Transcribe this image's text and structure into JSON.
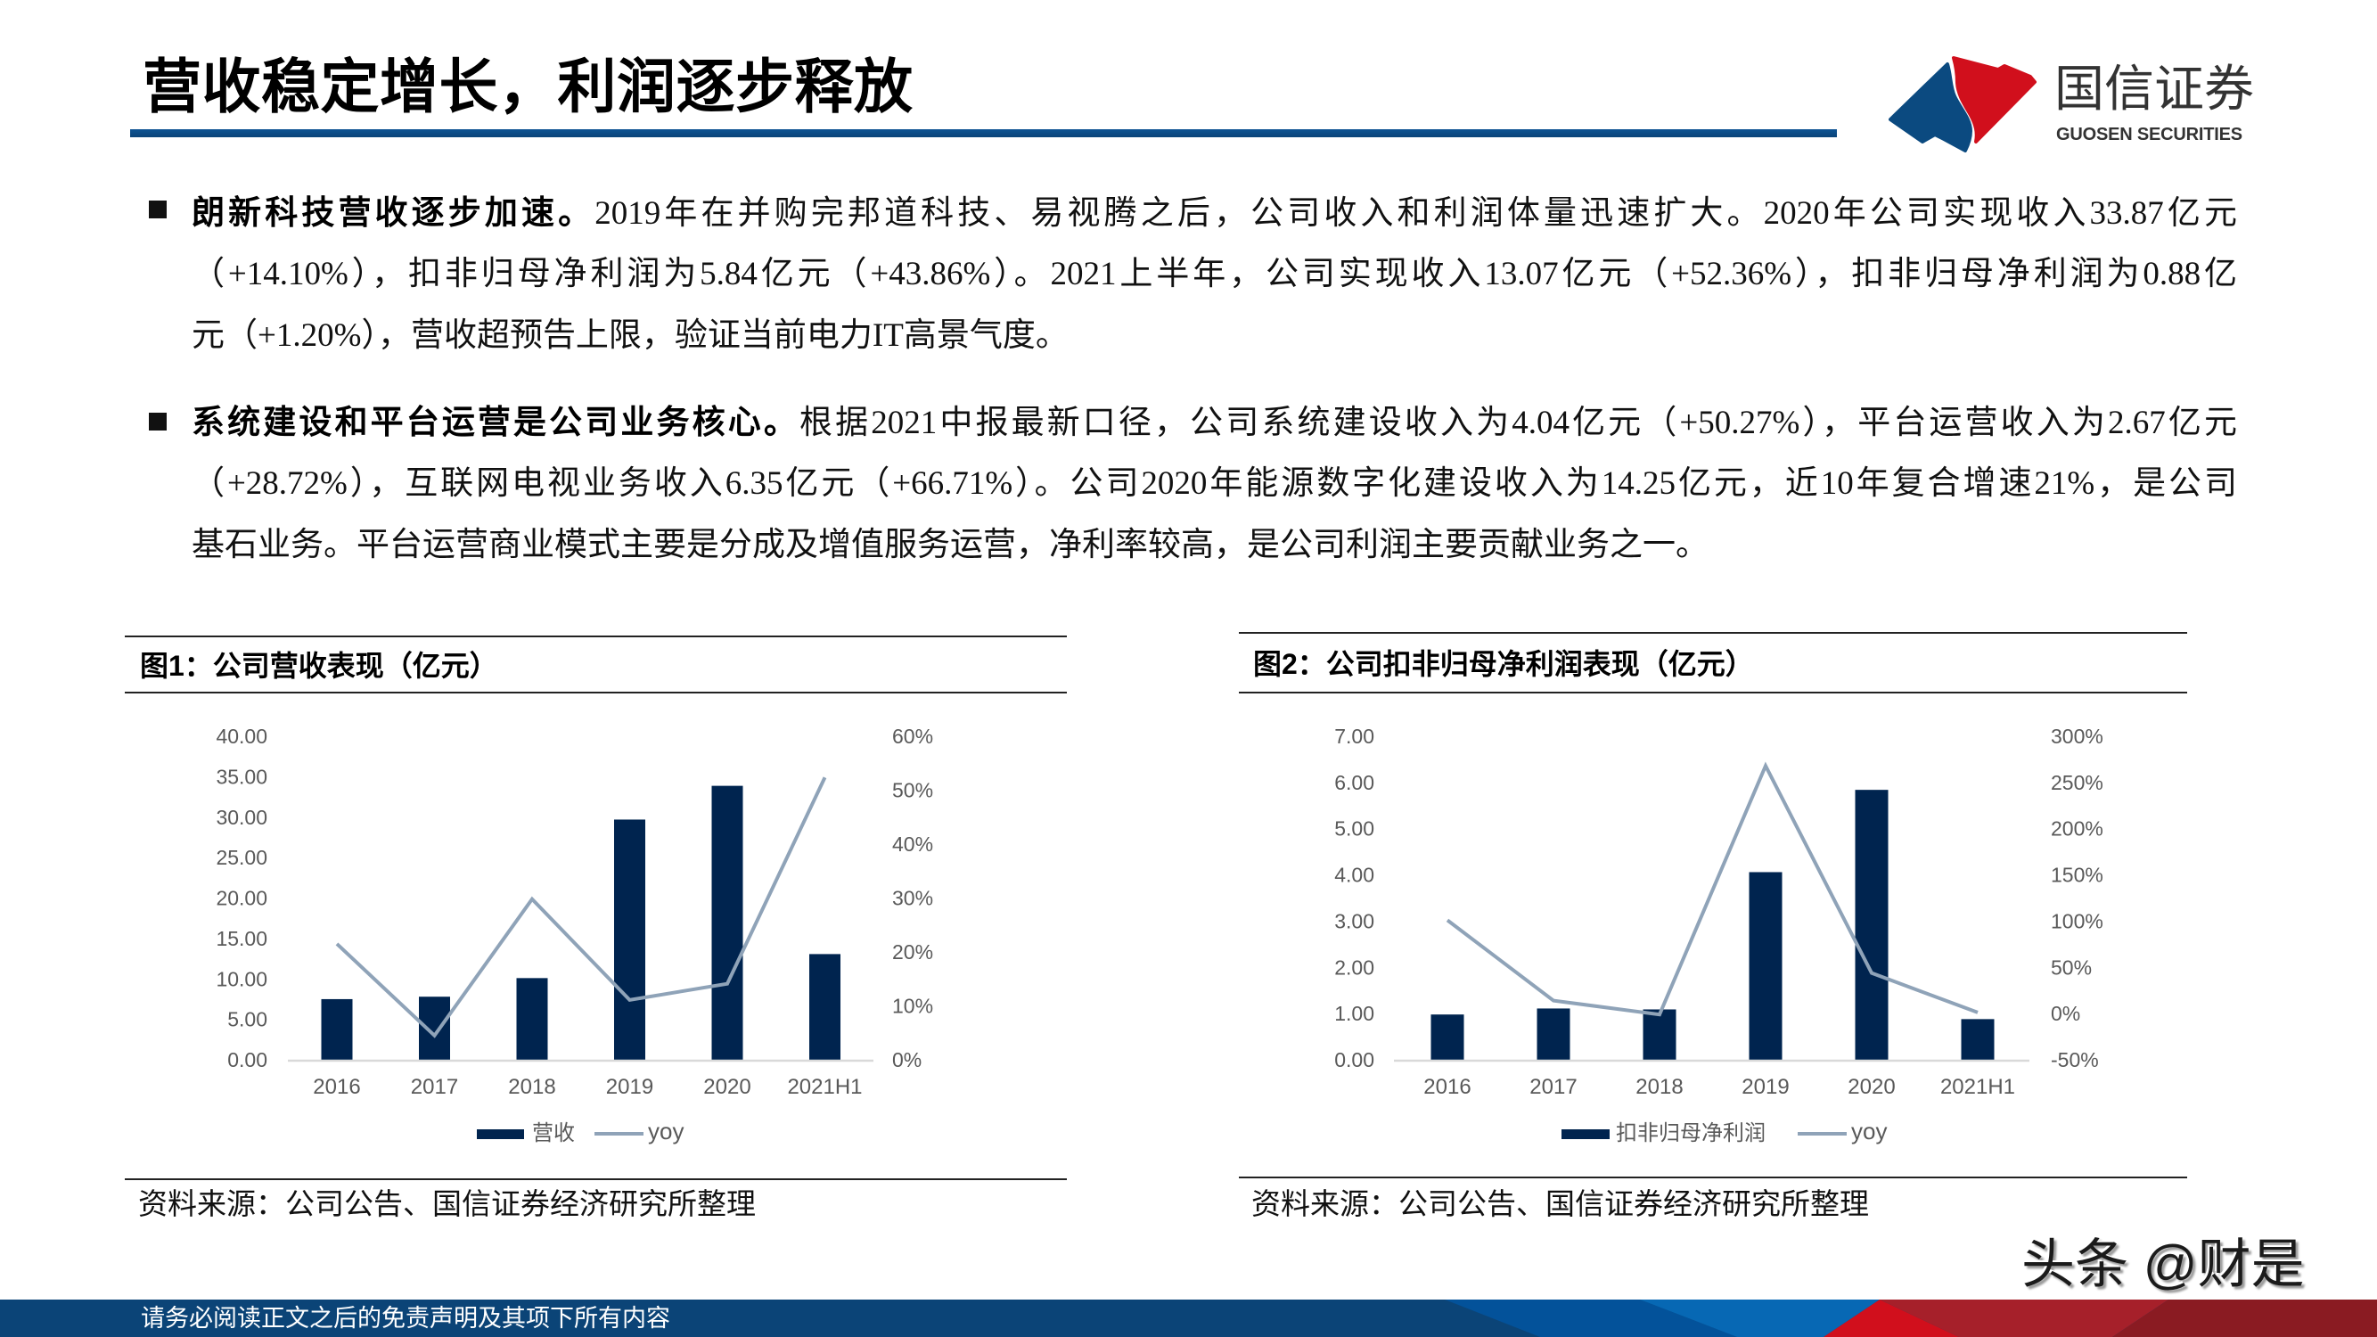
{
  "header": {
    "title": "营收稳定增长，利润逐步释放",
    "logo": {
      "cn": "国信证券",
      "en": "GUOSEN SECURITIES",
      "icon": "guosen-logo-icon"
    }
  },
  "bullets": [
    {
      "lead": "朗新科技营收逐步加速。",
      "lines": [
        "2019年在并购完邦道科技、易视腾之后，公司收入和利润体量迅速扩大。2020年公司实现收入33.87亿元",
        "（+14.10%），扣非归母净利润为5.84亿元（+43.86%）。2021上半年，公司实现收入13.07亿元（+52.36%），扣非归母净利润为0.88亿",
        "元（+1.20%），营收超预告上限，验证当前电力IT高景气度。"
      ]
    },
    {
      "lead": "系统建设和平台运营是公司业务核心。",
      "lines": [
        "根据2021中报最新口径，公司系统建设收入为4.04亿元（+50.27%），平台运营收入为2.67亿元",
        "（+28.72%），互联网电视业务收入6.35亿元（+66.71%）。公司2020年能源数字化建设收入为14.25亿元，近10年复合增速21%，是公司",
        "基石业务。平台运营商业模式主要是分成及增值服务运营，净利率较高，是公司利润主要贡献业务之一。"
      ]
    }
  ],
  "footer": {
    "disclaimer": "请务必阅读正文之后的免责声明及其项下所有内容"
  },
  "watermark": "头条 @财是",
  "colors": {
    "brand_blue": "#0b4477",
    "brand_red": "#d10f1c",
    "title_rule": "#0b4a80",
    "bar": "#00244f",
    "line": "#8fa3b8",
    "axis": "#d9d9d9",
    "tick_text": "#595959"
  },
  "chart_data": [
    {
      "type": "bar+line",
      "title": "图1：公司营收表现（亿元）",
      "source": "资料来源：公司公告、国信证券经济研究所整理",
      "categories": [
        "2016",
        "2017",
        "2018",
        "2019",
        "2020",
        "2021H1"
      ],
      "series": [
        {
          "name": "营收",
          "type": "bar",
          "axis": "left",
          "values": [
            7.5,
            7.8,
            10.1,
            29.7,
            33.87,
            13.07
          ],
          "color": "#00244f"
        },
        {
          "name": "yoy",
          "type": "line",
          "axis": "right",
          "unit": "%",
          "values": [
            21.5,
            4.5,
            29.8,
            11.1,
            14.1,
            52.36
          ],
          "color": "#8fa3b8"
        }
      ],
      "xlabel": "",
      "ylabel": "",
      "y2label": "",
      "ylim": [
        0,
        40
      ],
      "y_ticks": [
        "0.00",
        "5.00",
        "10.00",
        "15.00",
        "20.00",
        "25.00",
        "30.00",
        "35.00",
        "40.00"
      ],
      "y2lim": [
        0,
        60
      ],
      "y2_ticks": [
        "0%",
        "10%",
        "20%",
        "30%",
        "40%",
        "50%",
        "60%"
      ],
      "grid": false,
      "legend_position": "bottom"
    },
    {
      "type": "bar+line",
      "title": "图2：公司扣非归母净利润表现（亿元）",
      "source": "资料来源：公司公告、国信证券经济研究所整理",
      "categories": [
        "2016",
        "2017",
        "2018",
        "2019",
        "2020",
        "2021H1"
      ],
      "series": [
        {
          "name": "扣非归母净利润",
          "type": "bar",
          "axis": "left",
          "values": [
            0.98,
            1.11,
            1.09,
            4.06,
            5.84,
            0.88
          ],
          "color": "#00244f"
        },
        {
          "name": "yoy",
          "type": "line",
          "axis": "right",
          "unit": "%",
          "values": [
            101.0,
            14.0,
            -1.0,
            268.0,
            43.86,
            1.2
          ],
          "color": "#8fa3b8"
        }
      ],
      "xlabel": "",
      "ylabel": "",
      "y2label": "",
      "ylim": [
        0,
        7
      ],
      "y_ticks": [
        "0.00",
        "1.00",
        "2.00",
        "3.00",
        "4.00",
        "5.00",
        "6.00",
        "7.00"
      ],
      "y2lim": [
        -50,
        300
      ],
      "y2_ticks": [
        "-50%",
        "0%",
        "50%",
        "100%",
        "150%",
        "200%",
        "250%",
        "300%"
      ],
      "grid": false,
      "legend_position": "bottom"
    }
  ]
}
